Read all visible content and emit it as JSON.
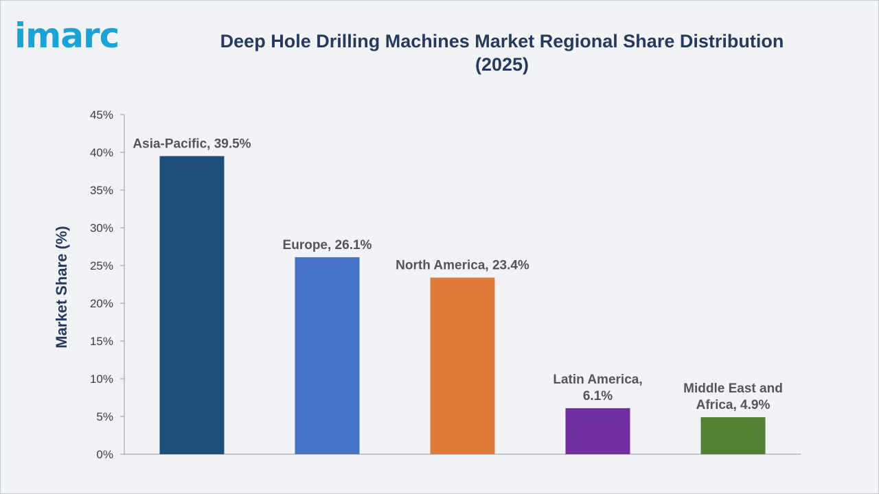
{
  "logo": {
    "text": "imarc"
  },
  "chart_data": {
    "type": "bar",
    "title": "Deep Hole Drilling Machines Market Regional Share Distribution (2025)",
    "xlabel": "",
    "ylabel": "Market Share (%)",
    "ylim": [
      0,
      45
    ],
    "yticks": [
      0,
      5,
      10,
      15,
      20,
      25,
      30,
      35,
      40,
      45
    ],
    "ytick_labels": [
      "0%",
      "5%",
      "10%",
      "15%",
      "20%",
      "25%",
      "30%",
      "35%",
      "40%",
      "45%"
    ],
    "grid": false,
    "categories": [
      "Asia-Pacific",
      "Europe",
      "North America",
      "Latin America",
      "Middle East and Africa"
    ],
    "values": [
      39.5,
      26.1,
      23.4,
      6.1,
      4.9
    ],
    "data_labels": [
      [
        "Asia-Pacific, 39.5%"
      ],
      [
        "Europe, 26.1%"
      ],
      [
        "North America, 23.4%"
      ],
      [
        "Latin America,",
        "6.1%"
      ],
      [
        "Middle East and",
        "Africa, 4.9%"
      ]
    ],
    "colors": [
      "#1f4e79",
      "#4472c4",
      "#e07b39",
      "#7030a0",
      "#548235"
    ]
  }
}
